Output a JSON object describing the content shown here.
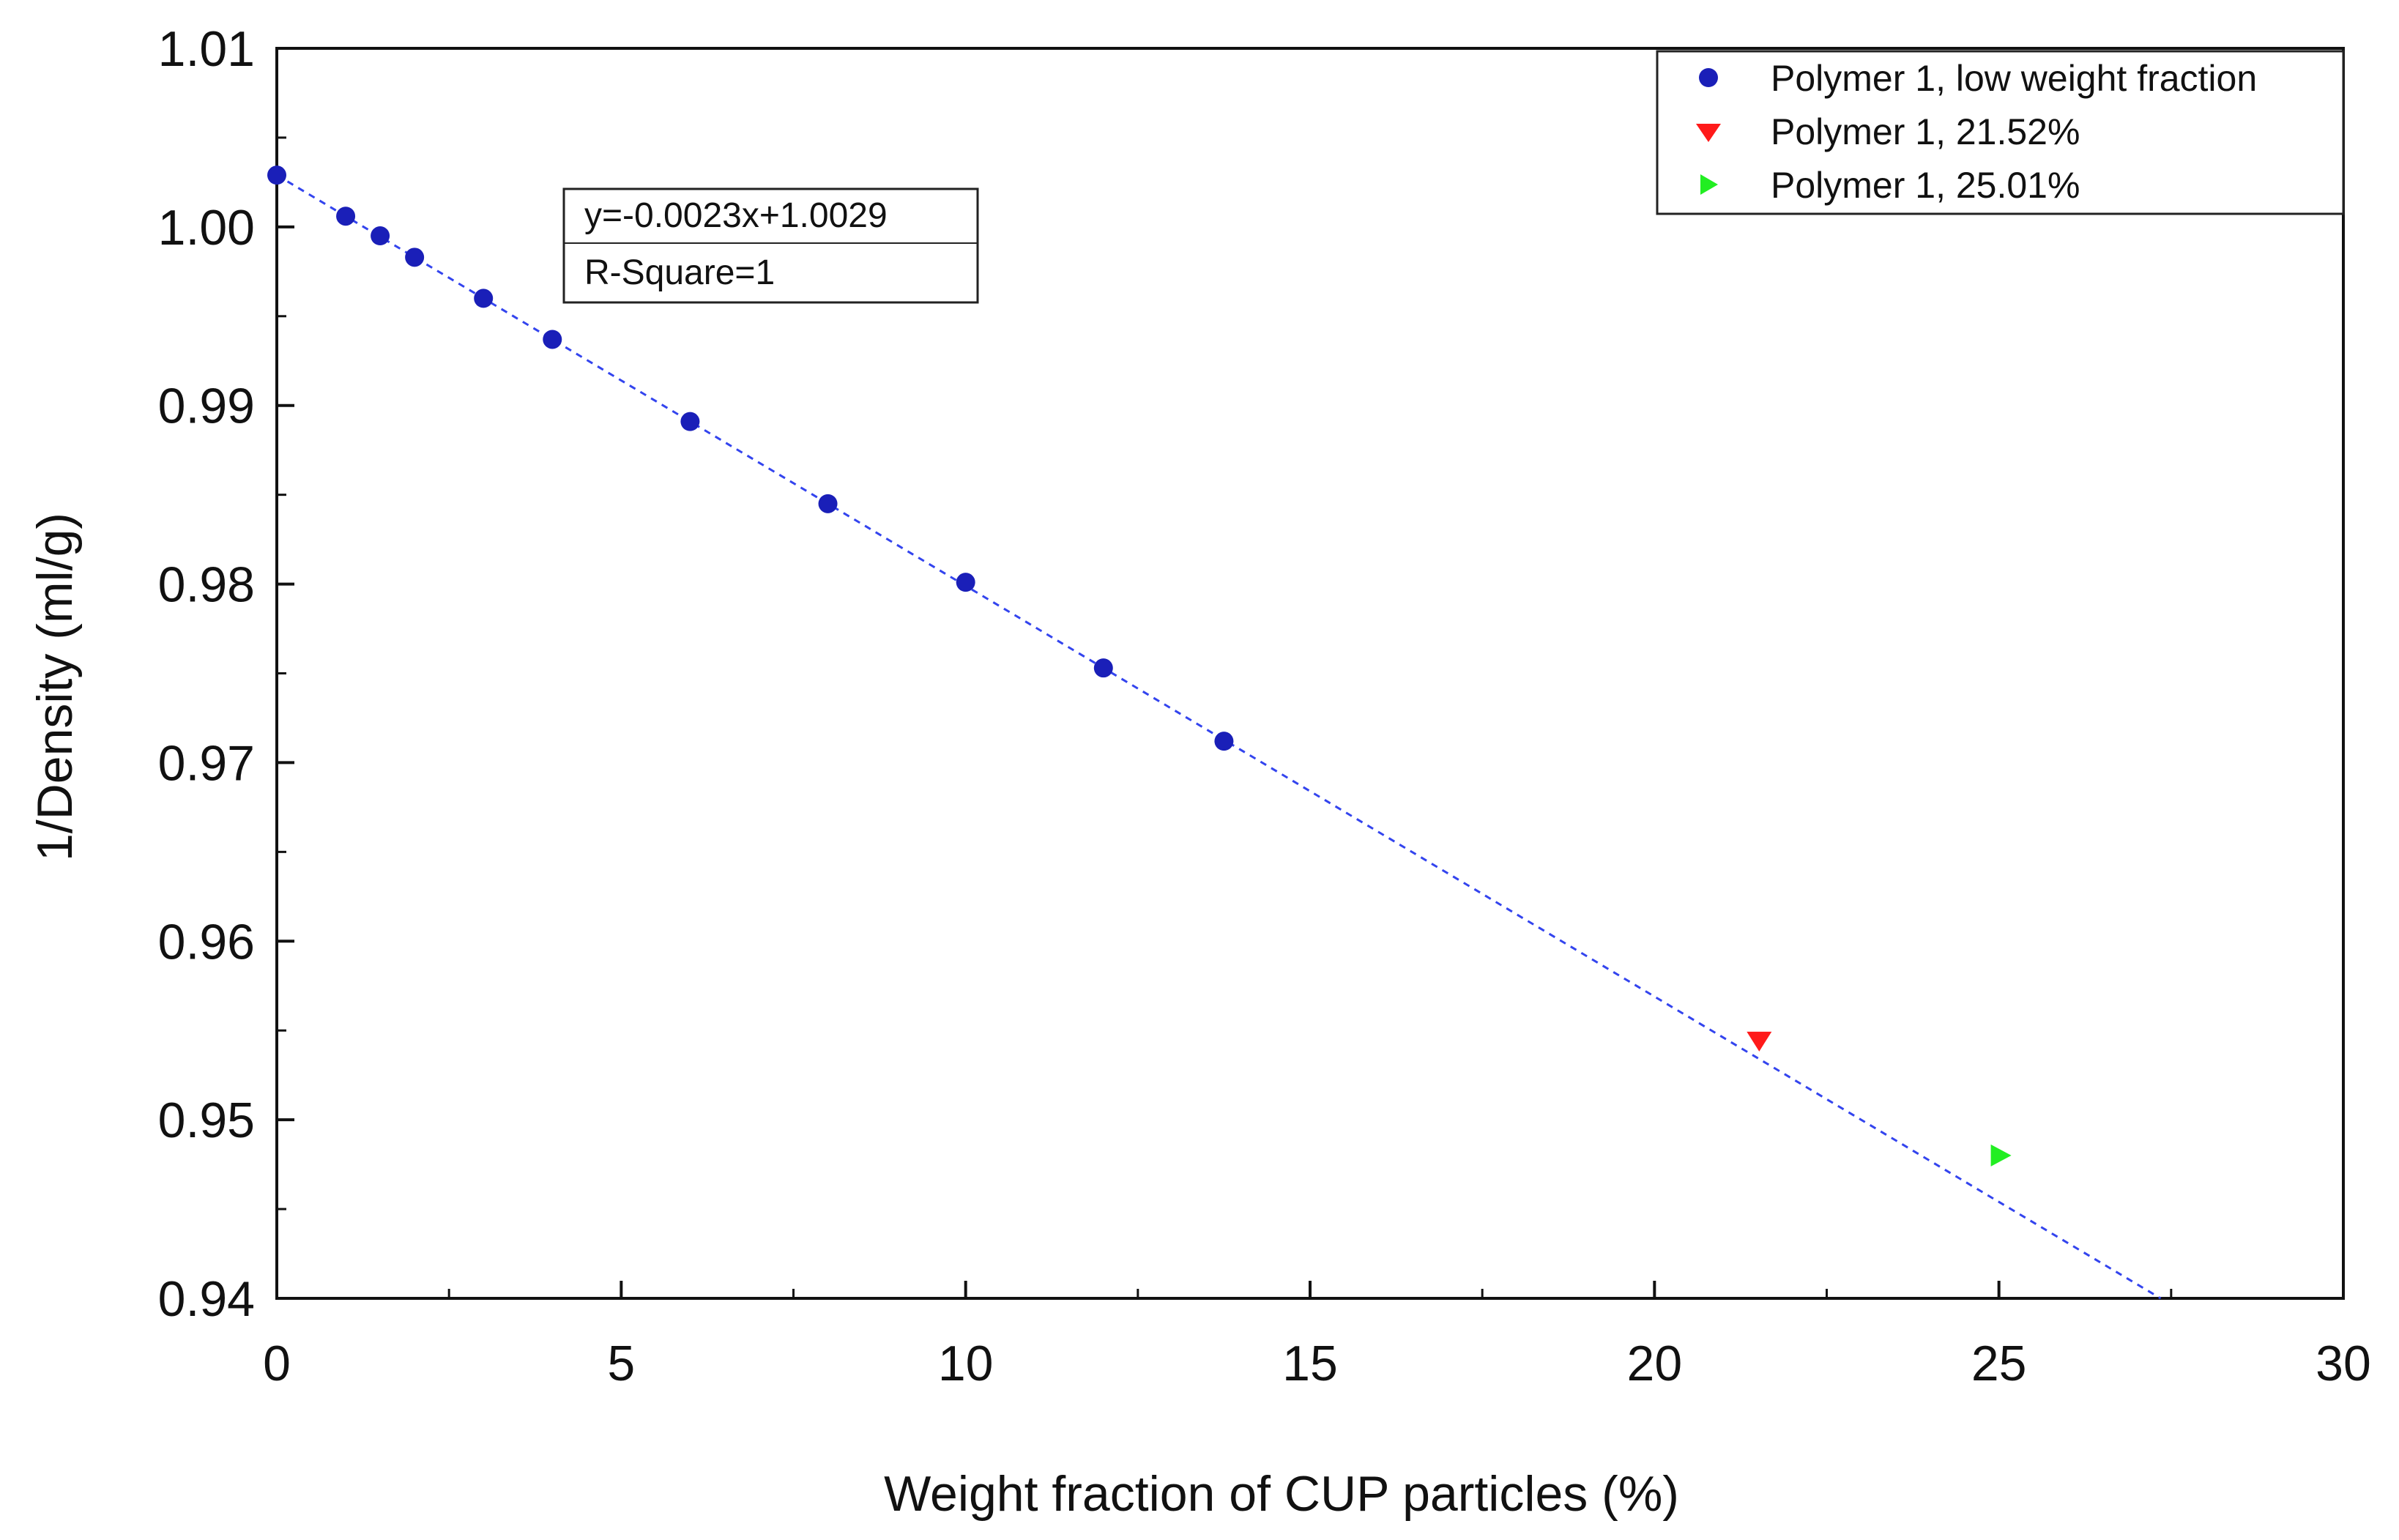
{
  "chart_data": {
    "type": "scatter",
    "xlabel": "Weight fraction of CUP particles (%)",
    "ylabel": "1/Density (ml/g)",
    "xlim": [
      0,
      30
    ],
    "ylim": [
      0.94,
      1.01
    ],
    "xticks": [
      0,
      5,
      10,
      15,
      20,
      25,
      30
    ],
    "xtick_labels": [
      "0",
      "5",
      "10",
      "15",
      "20",
      "25",
      "30"
    ],
    "yticks": [
      0.94,
      0.95,
      0.96,
      0.97,
      0.98,
      0.99,
      1.0,
      1.01
    ],
    "ytick_labels": [
      "0.94",
      "0.95",
      "0.96",
      "0.97",
      "0.98",
      "0.99",
      "1.00",
      "1.01"
    ],
    "legend_position": "top-right",
    "series": [
      {
        "name": "Polymer 1, low weight fraction",
        "marker": "circle",
        "color": "#1a1fb8",
        "x": [
          0,
          1,
          1.5,
          2,
          3,
          4,
          6,
          8,
          10,
          12,
          13.75
        ],
        "y": [
          1.0029,
          1.0006,
          0.9995,
          0.9983,
          0.996,
          0.9937,
          0.9891,
          0.9845,
          0.9801,
          0.9753,
          0.9712
        ]
      },
      {
        "name": "Polymer 1, 21.52%",
        "marker": "triangle-down",
        "color": "#ff1a1a",
        "x": [
          21.52
        ],
        "y": [
          0.9544
        ]
      },
      {
        "name": "Polymer 1, 25.01%",
        "marker": "triangle-right",
        "color": "#22ee22",
        "x": [
          25.01
        ],
        "y": [
          0.948
        ]
      }
    ],
    "fit": {
      "equation": "y=-0.0023x+1.0029",
      "r_square": "R-Square=1",
      "slope": -0.0023,
      "intercept": 1.0029,
      "x_range": [
        0,
        30
      ],
      "color": "#3344ee",
      "style": "dashed"
    }
  }
}
